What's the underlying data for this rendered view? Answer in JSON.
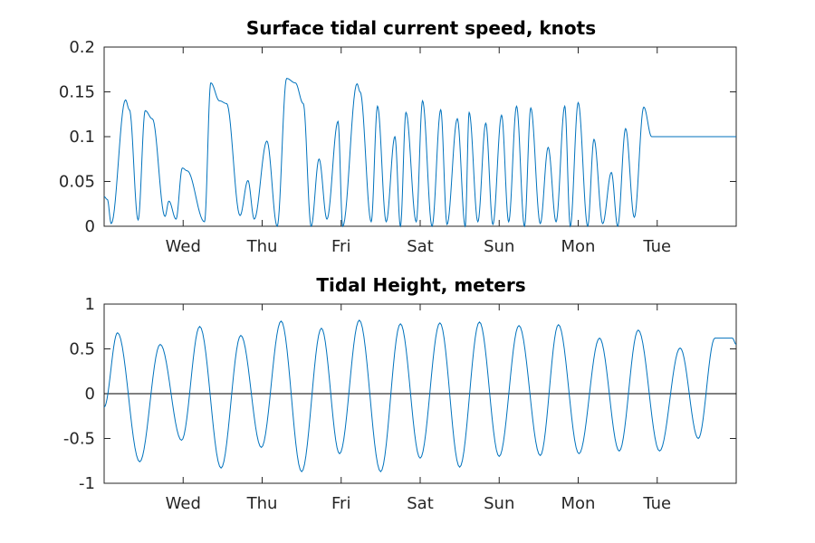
{
  "chart_data": [
    {
      "type": "line",
      "title": "Surface tidal current speed, knots",
      "xlabel": "",
      "ylabel": "",
      "xlim": [
        0,
        8.0
      ],
      "ylim": [
        0,
        0.2
      ],
      "yticks": [
        0,
        0.05,
        0.1,
        0.15,
        0.2
      ],
      "ytick_labels": [
        "0",
        "0.05",
        "0.1",
        "0.15",
        "0.2"
      ],
      "xticks": [
        1,
        2,
        3,
        4,
        5,
        6,
        7
      ],
      "xtick_labels": [
        "Wed",
        "Thu",
        "Fri",
        "Sat",
        "Sun",
        "Mon",
        "Tue"
      ],
      "grid": false,
      "series": [
        {
          "color": "#0072BD",
          "x": [
            0,
            0.04,
            0.09,
            0.27,
            0.32,
            0.43,
            0.52,
            0.61,
            0.77,
            0.82,
            0.91,
            0.99,
            1.05,
            1.27,
            1.35,
            1.46,
            1.55,
            1.72,
            1.82,
            1.9,
            2.06,
            2.19,
            2.31,
            2.42,
            2.52,
            2.62,
            2.72,
            2.82,
            2.96,
            3.02,
            3.2,
            3.24,
            3.38,
            3.46,
            3.57,
            3.68,
            3.75,
            3.82,
            3.95,
            4.03,
            4.15,
            4.26,
            4.34,
            4.47,
            4.57,
            4.62,
            4.73,
            4.83,
            4.92,
            5.03,
            5.12,
            5.22,
            5.32,
            5.4,
            5.52,
            5.62,
            5.72,
            5.83,
            5.9,
            6.0,
            6.12,
            6.2,
            6.31,
            6.42,
            6.5,
            6.6,
            6.71,
            6.83,
            6.93,
            7.02,
            7.11,
            7.2,
            7.3,
            7.4,
            7.51,
            7.6,
            7.72,
            7.82,
            7.98,
            8.0
          ],
          "values": [
            0.033,
            0.03,
            0.003,
            0.141,
            0.13,
            0.007,
            0.129,
            0.12,
            0.011,
            0.028,
            0.008,
            0.065,
            0.062,
            0.005,
            0.16,
            0.14,
            0.137,
            0.012,
            0.051,
            0.008,
            0.095,
            0.0,
            0.165,
            0.16,
            0.137,
            0.0,
            0.075,
            0.008,
            0.117,
            0.0,
            0.159,
            0.15,
            0.005,
            0.134,
            0.005,
            0.1,
            0.0,
            0.127,
            0.005,
            0.14,
            0.0,
            0.13,
            0.002,
            0.12,
            0.0,
            0.127,
            0.005,
            0.115,
            0.002,
            0.124,
            0.005,
            0.134,
            0.0,
            0.132,
            0.003,
            0.088,
            0.005,
            0.134,
            0.0,
            0.138,
            0.0,
            0.097,
            0.003,
            0.06,
            0.0,
            0.109,
            0.01,
            0.133,
            0.1,
            0.1,
            0.1,
            0.1,
            0.1,
            0.1,
            0.1,
            0.1,
            0.1,
            0.1,
            0.1,
            0.1
          ]
        }
      ]
    },
    {
      "type": "line",
      "title": "Tidal Height, meters",
      "xlabel": "",
      "ylabel": "",
      "xlim": [
        0,
        8.0
      ],
      "ylim": [
        -1,
        1
      ],
      "yticks": [
        -1,
        -0.5,
        0,
        0.5,
        1
      ],
      "ytick_labels": [
        "-1",
        "-0.5",
        "0",
        "0.5",
        "1"
      ],
      "xticks": [
        1,
        2,
        3,
        4,
        5,
        6,
        7
      ],
      "xtick_labels": [
        "Wed",
        "Thu",
        "Fri",
        "Sat",
        "Sun",
        "Mon",
        "Tue"
      ],
      "grid": false,
      "zero_line": true,
      "series": [
        {
          "color": "#0072BD",
          "x": [
            0,
            0.17,
            0.45,
            0.71,
            0.98,
            1.21,
            1.48,
            1.73,
            1.99,
            2.24,
            2.5,
            2.75,
            2.98,
            3.23,
            3.5,
            3.75,
            4.0,
            4.25,
            4.5,
            4.75,
            5.0,
            5.25,
            5.52,
            5.75,
            6.01,
            6.27,
            6.52,
            6.76,
            7.03,
            7.29,
            7.52,
            7.73,
            7.95,
            8.0
          ],
          "values": [
            -0.15,
            0.68,
            -0.76,
            0.55,
            -0.52,
            0.75,
            -0.83,
            0.65,
            -0.6,
            0.81,
            -0.87,
            0.73,
            -0.67,
            0.82,
            -0.87,
            0.78,
            -0.72,
            0.79,
            -0.82,
            0.8,
            -0.7,
            0.76,
            -0.69,
            0.77,
            -0.67,
            0.62,
            -0.64,
            0.71,
            -0.64,
            0.51,
            -0.5,
            0.62,
            0.62,
            0.55
          ]
        }
      ]
    }
  ]
}
